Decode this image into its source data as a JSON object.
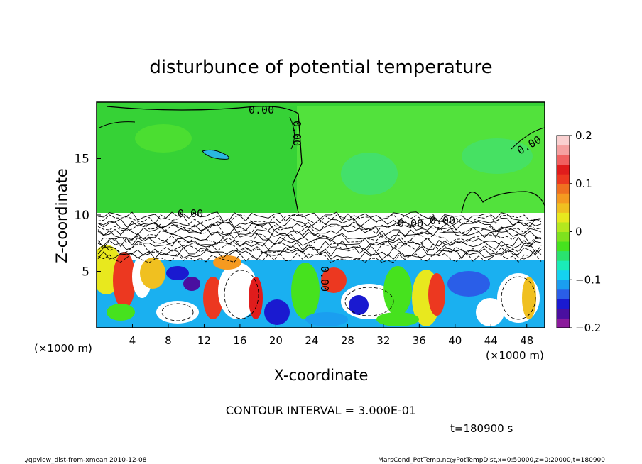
{
  "chart_data": {
    "type": "heatmap",
    "title": "disturbunce of potential temperature",
    "xlabel": "X-coordinate",
    "ylabel": "Z-coordinate",
    "x_unit_left": "(×1000 m)",
    "x_unit_right": "(×1000 m)",
    "xlim": [
      0,
      50
    ],
    "ylim": [
      0,
      20
    ],
    "x_ticks": [
      4,
      8,
      12,
      16,
      20,
      24,
      28,
      32,
      36,
      40,
      44,
      48
    ],
    "y_ticks": [
      5,
      10,
      15
    ],
    "colorbar": {
      "range": [
        -0.2,
        0.2
      ],
      "tick_values": [
        0.2,
        0.1,
        0,
        -0.1,
        -0.2
      ],
      "tick_labels": [
        "0.2",
        "0.1",
        "0",
        "−0.1",
        "−0.2"
      ],
      "colors": [
        "#8b1a9c",
        "#4a0fa0",
        "#1a1ad0",
        "#2a5ee8",
        "#1a9ef0",
        "#14d2f0",
        "#1aecb8",
        "#2ae26e",
        "#46e21e",
        "#7ee21e",
        "#b4e81e",
        "#e8e81e",
        "#f0c020",
        "#f59a20",
        "#f07020",
        "#ec3820",
        "#e01c1c",
        "#f06060",
        "#f5a0a0",
        "#fad0d0"
      ]
    },
    "contour_labels": [
      "0.00",
      "0.00",
      "0.00",
      "0.00",
      "0.00",
      "0.00",
      "0.00"
    ],
    "contour_interval_text": "CONTOUR INTERVAL = 3.000E-01",
    "time_text": "t=180900 s",
    "footer_left": "./gpview_dist-from-xmean  2010-12-08",
    "footer_right": "MarsCond_PotTemp.nc@PotTempDist,x=0:50000,z=0:20000,t=180900",
    "grid": false
  }
}
